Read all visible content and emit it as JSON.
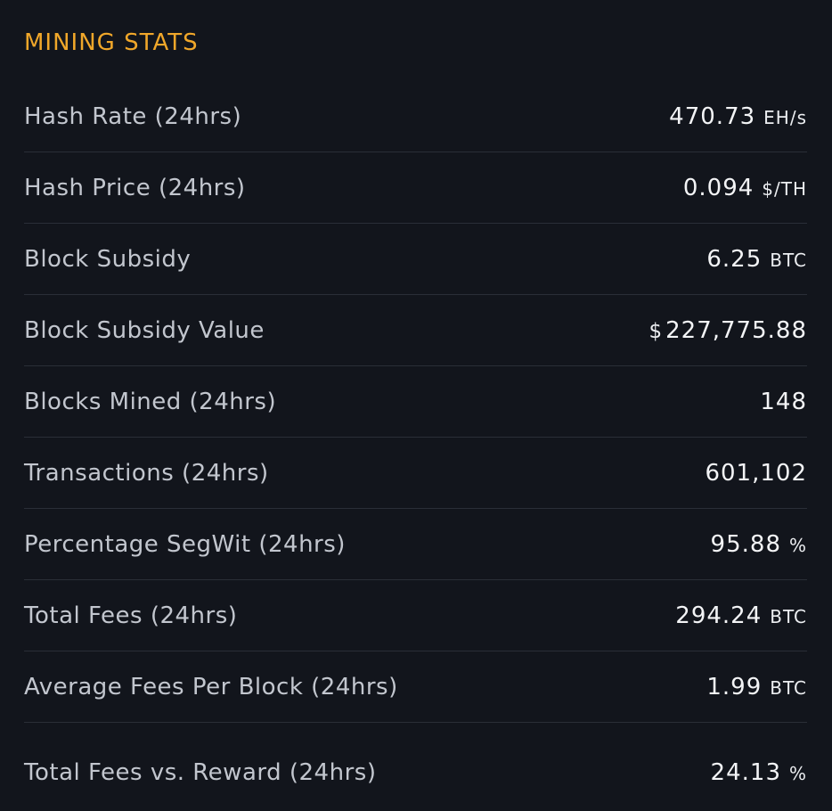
{
  "section": {
    "title": "MINING STATS"
  },
  "stats": [
    {
      "label": "Hash Rate (24hrs)",
      "prefix": "",
      "value": "470.73",
      "unit": "EH/s"
    },
    {
      "label": "Hash Price (24hrs)",
      "prefix": "",
      "value": "0.094",
      "unit": "$/TH"
    },
    {
      "label": "Block Subsidy",
      "prefix": "",
      "value": "6.25",
      "unit": "BTC"
    },
    {
      "label": "Block Subsidy Value",
      "prefix": "$",
      "value": "227,775.88",
      "unit": ""
    },
    {
      "label": "Blocks Mined (24hrs)",
      "prefix": "",
      "value": "148",
      "unit": ""
    },
    {
      "label": "Transactions (24hrs)",
      "prefix": "",
      "value": "601,102",
      "unit": ""
    },
    {
      "label": "Percentage SegWit (24hrs)",
      "prefix": "",
      "value": "95.88",
      "unit": "%"
    },
    {
      "label": "Total Fees (24hrs)",
      "prefix": "",
      "value": "294.24",
      "unit": "BTC"
    },
    {
      "label": "Average Fees Per Block (24hrs)",
      "prefix": "",
      "value": "1.99",
      "unit": "BTC"
    },
    {
      "label": "Total Fees vs. Reward (24hrs)",
      "prefix": "",
      "value": "24.13",
      "unit": "%"
    }
  ]
}
